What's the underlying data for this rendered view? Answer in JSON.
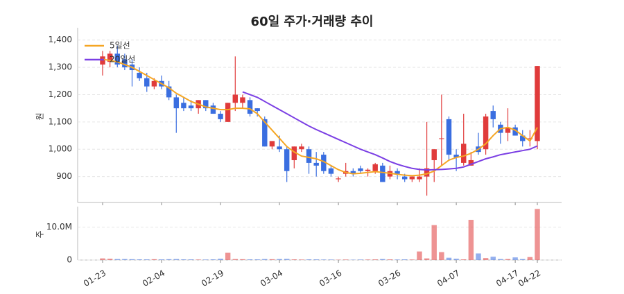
{
  "chart_data": {
    "type": "candlestick",
    "title": "60일 주가·거래량 추이",
    "y_label": "원",
    "categories": [
      "01-23",
      null,
      null,
      null,
      null,
      null,
      null,
      null,
      "02-04",
      null,
      null,
      null,
      null,
      null,
      null,
      null,
      "02-19",
      null,
      null,
      null,
      null,
      null,
      null,
      null,
      "03-04",
      null,
      null,
      null,
      null,
      null,
      null,
      null,
      "03-16",
      null,
      null,
      null,
      null,
      null,
      null,
      null,
      "03-26",
      null,
      null,
      null,
      null,
      null,
      null,
      null,
      "04-07",
      null,
      null,
      null,
      null,
      null,
      null,
      null,
      "04-17",
      null,
      null,
      "04-22"
    ],
    "open": [
      1310,
      1320,
      1350,
      1330,
      1310,
      1280,
      1260,
      1230,
      1250,
      1230,
      1190,
      1170,
      1160,
      1150,
      1180,
      1160,
      1130,
      1100,
      1170,
      1170,
      1180,
      1150,
      1110,
      1010,
      1010,
      1000,
      960,
      1000,
      1000,
      950,
      980,
      930,
      890,
      910,
      920,
      930,
      920,
      920,
      940,
      900,
      920,
      900,
      890,
      890,
      900,
      960,
      1040,
      1110,
      980,
      950,
      940,
      1010,
      1000,
      1140,
      1090,
      1060,
      1080,
      1050,
      1040,
      1030
    ],
    "high": [
      1360,
      1360,
      1380,
      1350,
      1330,
      1300,
      1280,
      1260,
      1270,
      1250,
      1200,
      1190,
      1180,
      1180,
      1180,
      1170,
      1140,
      1170,
      1340,
      1200,
      1190,
      1150,
      1120,
      1030,
      1050,
      1010,
      1010,
      1020,
      1010,
      990,
      990,
      940,
      900,
      950,
      930,
      940,
      930,
      950,
      950,
      940,
      930,
      910,
      900,
      930,
      1100,
      1000,
      1200,
      1120,
      1000,
      1130,
      990,
      1060,
      1130,
      1160,
      1100,
      1150,
      1090,
      1070,
      1070,
      1305
    ],
    "low": [
      1270,
      1300,
      1300,
      1290,
      1230,
      1250,
      1210,
      1220,
      1220,
      1180,
      1060,
      1140,
      1140,
      1130,
      1140,
      1130,
      1100,
      1100,
      1140,
      1150,
      1120,
      1120,
      1010,
      1000,
      990,
      880,
      930,
      990,
      910,
      900,
      910,
      900,
      880,
      900,
      900,
      910,
      900,
      910,
      880,
      890,
      890,
      880,
      880,
      880,
      830,
      880,
      940,
      960,
      920,
      940,
      940,
      980,
      980,
      1080,
      1020,
      1030,
      1050,
      1010,
      1010,
      1000
    ],
    "close": [
      1340,
      1350,
      1310,
      1300,
      1290,
      1260,
      1230,
      1250,
      1230,
      1190,
      1150,
      1150,
      1150,
      1180,
      1150,
      1130,
      1110,
      1170,
      1200,
      1190,
      1130,
      1140,
      1010,
      1030,
      1000,
      920,
      1010,
      1010,
      950,
      940,
      920,
      910,
      893,
      920,
      910,
      920,
      925,
      945,
      880,
      920,
      910,
      890,
      900,
      900,
      930,
      1000,
      1040,
      980,
      970,
      1020,
      960,
      990,
      1120,
      1110,
      1060,
      1080,
      1050,
      1030,
      1040,
      1305
    ],
    "series": [
      {
        "name": "5일선",
        "color": "#f5a623",
        "values": [
          1330,
          1325,
          1320,
          1310,
          1300,
          1285,
          1270,
          1255,
          1240,
          1225,
          1205,
          1190,
          1175,
          1165,
          1155,
          1150,
          1145,
          1145,
          1150,
          1150,
          1148,
          1130,
          1100,
          1070,
          1040,
          1010,
          990,
          975,
          970,
          965,
          955,
          940,
          925,
          915,
          910,
          912,
          915,
          918,
          915,
          912,
          908,
          905,
          903,
          905,
          910,
          920,
          940,
          960,
          970,
          975,
          985,
          1000,
          1020,
          1050,
          1075,
          1080,
          1070,
          1050,
          1030,
          1080
        ]
      },
      {
        "name": "20일선",
        "color": "#7b3fe4",
        "values": [
          null,
          null,
          null,
          null,
          null,
          null,
          null,
          null,
          null,
          null,
          null,
          null,
          null,
          null,
          null,
          null,
          null,
          null,
          null,
          1210,
          1200,
          1190,
          1175,
          1160,
          1145,
          1130,
          1115,
          1100,
          1085,
          1072,
          1060,
          1048,
          1036,
          1024,
          1012,
          1000,
          990,
          980,
          968,
          955,
          945,
          937,
          930,
          926,
          924,
          925,
          926,
          928,
          930,
          935,
          945,
          955,
          965,
          972,
          980,
          985,
          990,
          995,
          1000,
          1012
        ]
      }
    ],
    "up_color": "#e03b3b",
    "down_color": "#3a6ee0",
    "ylim": [
      805,
      1445
    ],
    "yticks": [
      {
        "value": 900,
        "label": "900"
      },
      {
        "value": 1000,
        "label": "1,000"
      },
      {
        "value": 1100,
        "label": "1,100"
      },
      {
        "value": 1200,
        "label": "1,200"
      },
      {
        "value": 1300,
        "label": "1,300"
      },
      {
        "value": 1400,
        "label": "1,400"
      }
    ],
    "grid": true,
    "legend": "upper left",
    "volume": {
      "y_label": "주",
      "values": [
        500000,
        400000,
        300000,
        300000,
        250000,
        200000,
        200000,
        250000,
        200000,
        250000,
        300000,
        200000,
        200000,
        150000,
        150000,
        200000,
        400000,
        2200000,
        300000,
        250000,
        200000,
        200000,
        300000,
        250000,
        300000,
        350000,
        200000,
        150000,
        200000,
        200000,
        150000,
        150000,
        100000,
        150000,
        100000,
        150000,
        150000,
        200000,
        300000,
        200000,
        150000,
        200000,
        150000,
        2600000,
        500000,
        10600000,
        2400000,
        700000,
        400000,
        200000,
        12200000,
        2000000,
        600000,
        1000000,
        300000,
        300000,
        800000,
        300000,
        900000,
        15500000
      ],
      "ylim": [
        0,
        16200000
      ],
      "yticks": [
        0,
        {
          "value": 10000000,
          "label": "10.0M"
        }
      ]
    }
  }
}
